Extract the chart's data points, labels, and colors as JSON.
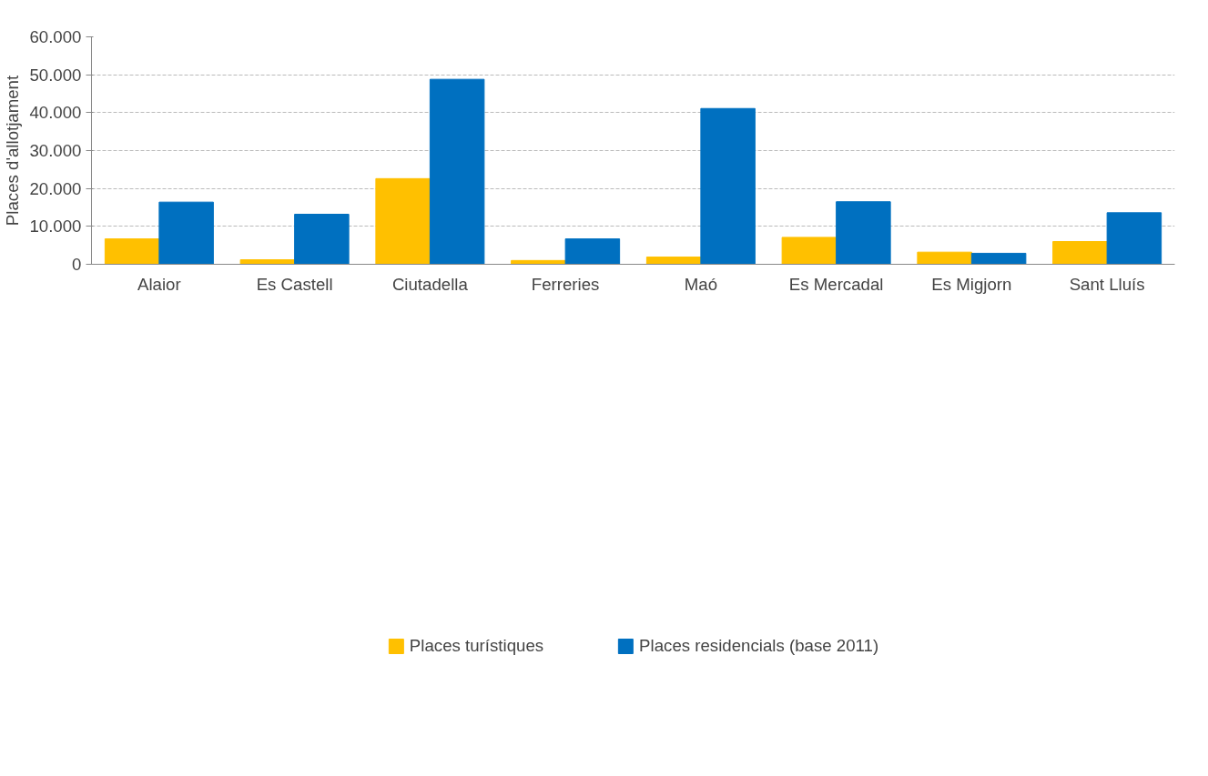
{
  "chart_data": {
    "type": "bar",
    "ylabel": "Places d'allotjament",
    "categories": [
      "Alaior",
      "Es Castell",
      "Ciutadella",
      "Ferreries",
      "Maó",
      "Es Mercadal",
      "Es Migjorn",
      "Sant Lluís"
    ],
    "series": [
      {
        "name": "Places turístiques",
        "color": "#ffc000",
        "values": [
          6700,
          1200,
          22600,
          1000,
          1900,
          7100,
          3200,
          6000
        ]
      },
      {
        "name": "Places residencials (base 2011)",
        "color": "#0070c0",
        "values": [
          16400,
          13200,
          48800,
          6700,
          41100,
          16500,
          2900,
          13600
        ]
      }
    ],
    "ylim": [
      0,
      60000
    ],
    "yticks": [
      {
        "value": 0,
        "label": "0"
      },
      {
        "value": 10000,
        "label": "10.000"
      },
      {
        "value": 20000,
        "label": "20.000"
      },
      {
        "value": 30000,
        "label": "30.000"
      },
      {
        "value": 40000,
        "label": "40.000"
      },
      {
        "value": 50000,
        "label": "50.000"
      },
      {
        "value": 60000,
        "label": "60.000"
      }
    ],
    "grid": "y",
    "legend": "bottom"
  }
}
